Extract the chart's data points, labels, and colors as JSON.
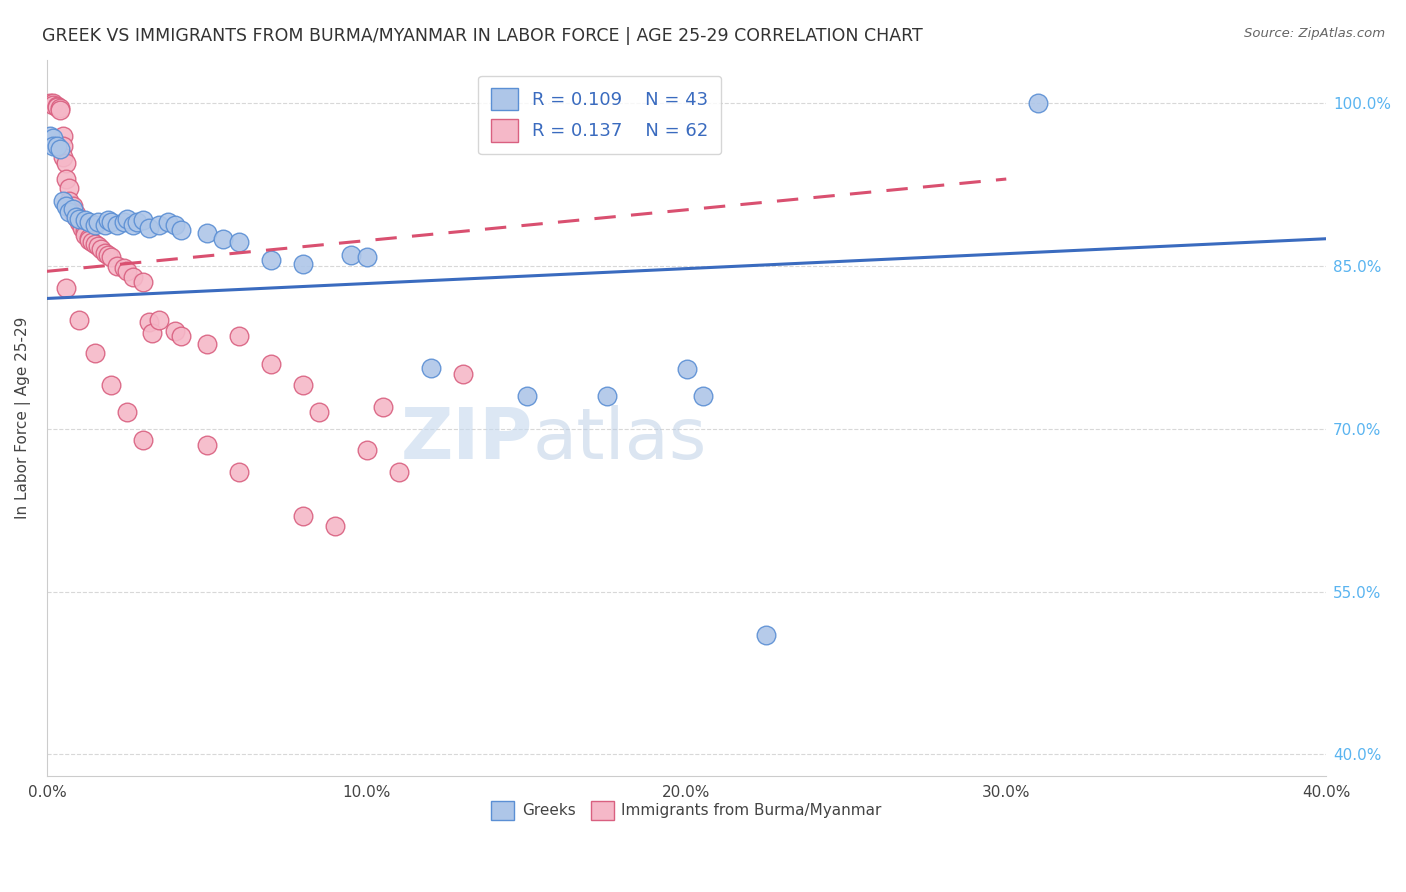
{
  "title": "GREEK VS IMMIGRANTS FROM BURMA/MYANMAR IN LABOR FORCE | AGE 25-29 CORRELATION CHART",
  "source": "Source: ZipAtlas.com",
  "ylabel": "In Labor Force | Age 25-29",
  "xmin": 0.0,
  "xmax": 0.4,
  "ymin": 0.38,
  "ymax": 1.04,
  "yticks": [
    0.4,
    0.55,
    0.7,
    0.85,
    1.0
  ],
  "ytick_labels": [
    "40.0%",
    "55.0%",
    "70.0%",
    "85.0%",
    "100.0%"
  ],
  "xticks": [
    0.0,
    0.1,
    0.2,
    0.3,
    0.4
  ],
  "xtick_labels": [
    "0.0%",
    "10.0%",
    "20.0%",
    "30.0%",
    "40.0%"
  ],
  "blue_R": 0.109,
  "blue_N": 43,
  "pink_R": 0.137,
  "pink_N": 62,
  "blue_color": "#aec6e8",
  "pink_color": "#f5b8c8",
  "blue_edge_color": "#5b8fd4",
  "pink_edge_color": "#d96080",
  "blue_line_color": "#3a6bbf",
  "pink_line_color": "#d95070",
  "axis_color": "#cccccc",
  "grid_color": "#d8d8d8",
  "right_tick_color": "#5ab4f0",
  "title_color": "#333333",
  "blue_trend": [
    0.0,
    0.82,
    0.4,
    0.875
  ],
  "pink_trend": [
    0.0,
    0.845,
    0.3,
    0.93
  ],
  "blue_scatter": [
    [
      0.001,
      0.97
    ],
    [
      0.002,
      0.968
    ],
    [
      0.002,
      0.96
    ],
    [
      0.003,
      0.96
    ],
    [
      0.004,
      0.958
    ],
    [
      0.005,
      0.91
    ],
    [
      0.006,
      0.905
    ],
    [
      0.007,
      0.9
    ],
    [
      0.008,
      0.902
    ],
    [
      0.009,
      0.895
    ],
    [
      0.01,
      0.893
    ],
    [
      0.012,
      0.892
    ],
    [
      0.013,
      0.89
    ],
    [
      0.015,
      0.888
    ],
    [
      0.016,
      0.89
    ],
    [
      0.018,
      0.888
    ],
    [
      0.019,
      0.892
    ],
    [
      0.02,
      0.89
    ],
    [
      0.022,
      0.888
    ],
    [
      0.024,
      0.89
    ],
    [
      0.025,
      0.893
    ],
    [
      0.027,
      0.888
    ],
    [
      0.028,
      0.89
    ],
    [
      0.03,
      0.892
    ],
    [
      0.032,
      0.885
    ],
    [
      0.035,
      0.888
    ],
    [
      0.038,
      0.89
    ],
    [
      0.04,
      0.888
    ],
    [
      0.042,
      0.883
    ],
    [
      0.05,
      0.88
    ],
    [
      0.055,
      0.875
    ],
    [
      0.06,
      0.872
    ],
    [
      0.07,
      0.855
    ],
    [
      0.08,
      0.852
    ],
    [
      0.095,
      0.86
    ],
    [
      0.1,
      0.858
    ],
    [
      0.12,
      0.756
    ],
    [
      0.15,
      0.73
    ],
    [
      0.175,
      0.73
    ],
    [
      0.2,
      0.755
    ],
    [
      0.205,
      0.73
    ],
    [
      0.225,
      0.51
    ],
    [
      0.31,
      1.0
    ]
  ],
  "pink_scatter": [
    [
      0.001,
      1.0
    ],
    [
      0.002,
      1.0
    ],
    [
      0.002,
      0.998
    ],
    [
      0.003,
      0.997
    ],
    [
      0.003,
      0.996
    ],
    [
      0.004,
      0.995
    ],
    [
      0.004,
      0.994
    ],
    [
      0.005,
      0.97
    ],
    [
      0.005,
      0.96
    ],
    [
      0.005,
      0.95
    ],
    [
      0.006,
      0.945
    ],
    [
      0.006,
      0.93
    ],
    [
      0.007,
      0.922
    ],
    [
      0.007,
      0.91
    ],
    [
      0.008,
      0.905
    ],
    [
      0.008,
      0.9
    ],
    [
      0.009,
      0.898
    ],
    [
      0.009,
      0.895
    ],
    [
      0.01,
      0.892
    ],
    [
      0.01,
      0.89
    ],
    [
      0.011,
      0.888
    ],
    [
      0.011,
      0.885
    ],
    [
      0.012,
      0.882
    ],
    [
      0.012,
      0.878
    ],
    [
      0.013,
      0.876
    ],
    [
      0.013,
      0.874
    ],
    [
      0.014,
      0.872
    ],
    [
      0.015,
      0.87
    ],
    [
      0.016,
      0.868
    ],
    [
      0.017,
      0.866
    ],
    [
      0.018,
      0.862
    ],
    [
      0.019,
      0.86
    ],
    [
      0.02,
      0.858
    ],
    [
      0.022,
      0.85
    ],
    [
      0.024,
      0.848
    ],
    [
      0.025,
      0.845
    ],
    [
      0.027,
      0.84
    ],
    [
      0.03,
      0.835
    ],
    [
      0.032,
      0.798
    ],
    [
      0.033,
      0.788
    ],
    [
      0.035,
      0.8
    ],
    [
      0.04,
      0.79
    ],
    [
      0.042,
      0.785
    ],
    [
      0.05,
      0.778
    ],
    [
      0.06,
      0.785
    ],
    [
      0.07,
      0.76
    ],
    [
      0.08,
      0.74
    ],
    [
      0.085,
      0.715
    ],
    [
      0.1,
      0.68
    ],
    [
      0.105,
      0.72
    ],
    [
      0.11,
      0.66
    ],
    [
      0.13,
      0.75
    ],
    [
      0.05,
      0.685
    ],
    [
      0.06,
      0.66
    ],
    [
      0.08,
      0.62
    ],
    [
      0.09,
      0.61
    ],
    [
      0.006,
      0.83
    ],
    [
      0.01,
      0.8
    ],
    [
      0.015,
      0.77
    ],
    [
      0.02,
      0.74
    ],
    [
      0.025,
      0.715
    ],
    [
      0.03,
      0.69
    ]
  ]
}
